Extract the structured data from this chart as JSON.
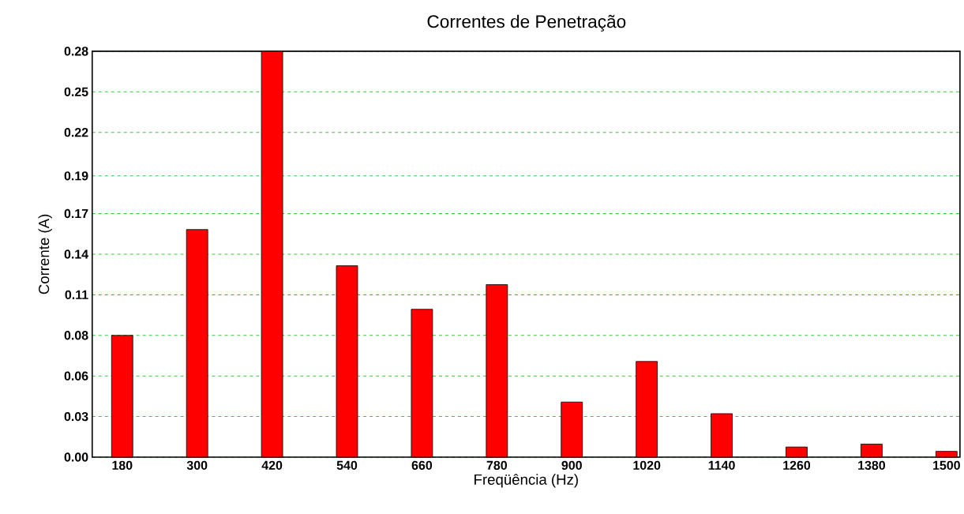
{
  "chart_data": {
    "type": "bar",
    "title": "Correntes de Penetração",
    "xlabel": "Freqüência (Hz)",
    "ylabel": "Corrente (A)",
    "categories": [
      "180",
      "300",
      "420",
      "540",
      "660",
      "780",
      "900",
      "1020",
      "1140",
      "1260",
      "1380",
      "1500"
    ],
    "values": [
      0.084,
      0.157,
      0.28,
      0.132,
      0.102,
      0.119,
      0.038,
      0.066,
      0.03,
      0.007,
      0.009,
      0.004
    ],
    "color": "#ff0000",
    "ylim": [
      0,
      0.28
    ],
    "yticks": [
      {
        "value": 0,
        "label": "0.00"
      },
      {
        "value": 0.028,
        "label": "0.03"
      },
      {
        "value": 0.056,
        "label": "0.06"
      },
      {
        "value": 0.084,
        "label": "0.08"
      },
      {
        "value": 0.112,
        "label": "0.11"
      },
      {
        "value": 0.14,
        "label": "0.14"
      },
      {
        "value": 0.168,
        "label": "0.17"
      },
      {
        "value": 0.194,
        "label": "0.19"
      },
      {
        "value": 0.224,
        "label": "0.22"
      },
      {
        "value": 0.252,
        "label": "0.25"
      },
      {
        "value": 0.28,
        "label": "0.28"
      }
    ],
    "grid": "y"
  }
}
